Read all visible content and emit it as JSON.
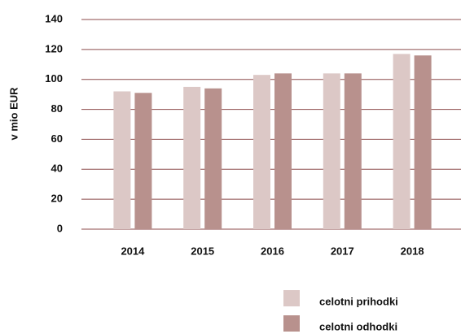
{
  "chart_data": {
    "type": "bar",
    "ylabel": "v mio EUR",
    "categories": [
      "2014",
      "2015",
      "2016",
      "2017",
      "2018"
    ],
    "series": [
      {
        "name": "celotni prihodki",
        "color": "#dcc8c6",
        "values": [
          92,
          95,
          103,
          104,
          117
        ]
      },
      {
        "name": "celotni odhodki",
        "color": "#b8918d",
        "values": [
          91,
          94,
          104,
          104,
          116
        ]
      }
    ],
    "ylim": [
      0,
      140
    ],
    "yticks": [
      0,
      20,
      40,
      60,
      80,
      100,
      120,
      140
    ],
    "grid": true,
    "legend": "bottom-right"
  }
}
